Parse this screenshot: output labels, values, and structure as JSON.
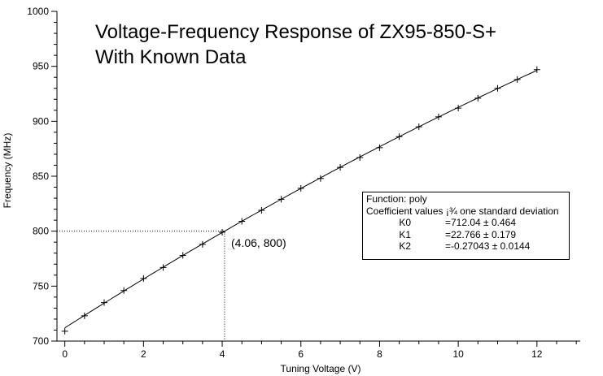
{
  "chart_data": {
    "type": "scatter",
    "title_lines": [
      "Voltage-Frequency Response of ZX95-850-S+",
      "With Known Data"
    ],
    "xlabel": "Tuning Voltage (V)",
    "ylabel": "Frequency (MHz)",
    "xlim": [
      -0.2,
      13.1
    ],
    "ylim": [
      700,
      1000
    ],
    "x_ticks": [
      0,
      2,
      4,
      6,
      8,
      10,
      12
    ],
    "y_ticks": [
      700,
      750,
      800,
      850,
      900,
      950,
      1000
    ],
    "grid": false,
    "series": [
      {
        "marker": "+",
        "points": [
          {
            "x": 0,
            "y": 709
          },
          {
            "x": 0.5,
            "y": 723
          },
          {
            "x": 1,
            "y": 735
          },
          {
            "x": 1.5,
            "y": 746
          },
          {
            "x": 2,
            "y": 757
          },
          {
            "x": 2.5,
            "y": 767
          },
          {
            "x": 3,
            "y": 778
          },
          {
            "x": 3.5,
            "y": 788
          },
          {
            "x": 4,
            "y": 799
          },
          {
            "x": 4.5,
            "y": 809
          },
          {
            "x": 5,
            "y": 819
          },
          {
            "x": 5.5,
            "y": 829
          },
          {
            "x": 6,
            "y": 839
          },
          {
            "x": 6.5,
            "y": 848
          },
          {
            "x": 7,
            "y": 858
          },
          {
            "x": 7.5,
            "y": 867
          },
          {
            "x": 8,
            "y": 876
          },
          {
            "x": 8.5,
            "y": 886
          },
          {
            "x": 9,
            "y": 895
          },
          {
            "x": 9.5,
            "y": 904
          },
          {
            "x": 10,
            "y": 912
          },
          {
            "x": 10.5,
            "y": 921
          },
          {
            "x": 11,
            "y": 930
          },
          {
            "x": 11.5,
            "y": 938
          },
          {
            "x": 12,
            "y": 947
          }
        ]
      }
    ],
    "fit": {
      "function": "poly",
      "coefficients": [
        712.04,
        22.766,
        -0.27043
      ],
      "x_range": [
        0,
        12
      ]
    },
    "annotation": {
      "label": "(4.06, 800)",
      "x": 4.06,
      "y": 800
    },
    "fit_box": {
      "line1": "Function: poly",
      "line2": "Coefficient values ¡¾ one standard deviation",
      "rows": [
        {
          "name": "K0",
          "value": "=712.04 ± 0.464"
        },
        {
          "name": "K1",
          "value": "=22.766 ± 0.179"
        },
        {
          "name": "K2",
          "value": "=-0.27043 ± 0.0144"
        }
      ]
    }
  }
}
